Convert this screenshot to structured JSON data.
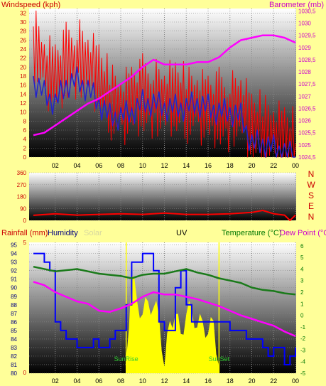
{
  "colors": {
    "background": "#ffff99",
    "wind": "#ff0000",
    "gust": "#ff0000",
    "avg_wind": "#2222cc",
    "barometer": "#ff00ff",
    "direction": "#ff0000",
    "humidity": "#0000ff",
    "temperature": "#1a7a1a",
    "dewpoint": "#ff00ff",
    "solar": "#ffff00",
    "axis_red": "#cc0000",
    "axis_magenta": "#cc00cc",
    "axis_green": "#007700"
  },
  "chart_data": [
    {
      "type": "line",
      "title": "",
      "left_label": "Windspeed (kph)",
      "right_label": "Barometer (mb)",
      "x_ticks": [
        "02",
        "04",
        "06",
        "08",
        "10",
        "12",
        "14",
        "16",
        "18",
        "20",
        "22",
        "00"
      ],
      "y_left_ticks": [
        "0",
        "2",
        "4",
        "6",
        "8",
        "10",
        "12",
        "14",
        "16",
        "18",
        "20",
        "22",
        "24",
        "26",
        "28",
        "30",
        "32"
      ],
      "y_left_range": [
        0,
        33
      ],
      "y_right_ticks": [
        "1024,5",
        "1025",
        "1025,5",
        "1026",
        "1026,5",
        "1027",
        "1027,5",
        "1028",
        "1028,5",
        "1029",
        "1029,5",
        "1030",
        "1030,5"
      ],
      "y_right_range": [
        1024.5,
        1030.6
      ],
      "series": [
        {
          "key": "gust",
          "x": [
            0,
            1,
            2,
            3,
            4,
            5,
            6,
            7,
            8,
            9,
            10,
            11,
            12,
            13,
            14,
            15,
            16,
            17,
            18,
            19,
            20,
            21,
            22,
            23,
            24
          ],
          "values": [
            26,
            20,
            18,
            21,
            22,
            20,
            17,
            13,
            11,
            13,
            14,
            13,
            12,
            13,
            12,
            12,
            11,
            11,
            10,
            11,
            6,
            6,
            5,
            4,
            3
          ]
        },
        {
          "key": "avg_wind",
          "x": [
            0,
            1,
            2,
            3,
            4,
            5,
            6,
            7,
            8,
            9,
            10,
            11,
            12,
            13,
            14,
            15,
            16,
            17,
            18,
            19,
            20,
            21,
            22,
            23,
            24
          ],
          "values": [
            17,
            14,
            12,
            16,
            17,
            15,
            12,
            9,
            9,
            10,
            12,
            12,
            11,
            11,
            11,
            12,
            11,
            10,
            10,
            9,
            3,
            3,
            2,
            1,
            0
          ]
        },
        {
          "key": "barometer",
          "x": [
            0,
            1,
            2,
            3,
            4,
            5,
            6,
            7,
            8,
            9,
            10,
            11,
            12,
            13,
            14,
            15,
            16,
            17,
            18,
            19,
            20,
            21,
            22,
            23,
            24
          ],
          "values": [
            1025.4,
            1025.5,
            1025.8,
            1026.1,
            1026.4,
            1026.7,
            1026.9,
            1027.2,
            1027.5,
            1027.8,
            1028.2,
            1028.5,
            1028.3,
            1028.3,
            1028.3,
            1028.4,
            1028.4,
            1028.6,
            1029.0,
            1029.3,
            1029.4,
            1029.5,
            1029.5,
            1029.4,
            1029.2
          ]
        }
      ]
    },
    {
      "type": "line",
      "title": "",
      "x_ticks": [
        "02",
        "04",
        "06",
        "08",
        "10",
        "12",
        "14",
        "16",
        "18",
        "20",
        "22",
        "00"
      ],
      "y_ticks": [
        "0",
        "90",
        "180",
        "270",
        "360"
      ],
      "y_range": [
        0,
        360
      ],
      "side_letters": [
        "N",
        "W",
        "S",
        "E",
        "N"
      ],
      "series": [
        {
          "key": "direction",
          "x": [
            0,
            2,
            4,
            6,
            8,
            10,
            12,
            14,
            16,
            18,
            20,
            21,
            22,
            23,
            23.5,
            24
          ],
          "values": [
            38,
            50,
            40,
            45,
            50,
            45,
            55,
            45,
            45,
            50,
            60,
            75,
            50,
            40,
            0,
            40
          ]
        }
      ]
    },
    {
      "type": "line",
      "title": "",
      "left_labels": [
        "Rainfall (mm)",
        "Humidity",
        "Solar"
      ],
      "center_label": "UV",
      "right_labels": [
        "Temperature (°C)",
        "Dew Point (°C)"
      ],
      "x_ticks": [
        "02",
        "04",
        "06",
        "08",
        "10",
        "12",
        "14",
        "16",
        "18",
        "20",
        "22",
        "00"
      ],
      "y_left_ticks": [
        "80",
        "81",
        "82",
        "83",
        "84",
        "85",
        "86",
        "87",
        "88",
        "89",
        "90",
        "91",
        "92",
        "93",
        "94",
        "95"
      ],
      "y_left_range": [
        80,
        95.3
      ],
      "y_right_ticks": [
        "-5",
        "-4",
        "-3",
        "-2",
        "-1",
        "0",
        "1",
        "2",
        "3",
        "4",
        "5",
        "6"
      ],
      "y_right_range": [
        -5,
        6.3
      ],
      "rain_ticks": [
        "0",
        "5"
      ],
      "markers": [
        "SunRise",
        "SunSet"
      ],
      "marker_x": [
        8.5,
        17
      ],
      "series": [
        {
          "key": "humidity",
          "x": [
            0,
            0.5,
            1,
            1.5,
            2,
            2.5,
            3,
            3.5,
            4,
            4.5,
            5,
            5.5,
            6,
            6.5,
            7,
            7.5,
            8,
            8.5,
            9,
            9.5,
            10,
            10.5,
            11,
            11.5,
            12,
            12.5,
            13,
            13.5,
            14,
            14.5,
            15,
            15.5,
            16,
            16.5,
            17,
            17.5,
            18,
            18.5,
            19,
            19.5,
            20,
            20.5,
            21,
            21.5,
            22,
            22.5,
            23,
            23.5,
            24
          ],
          "values": [
            94,
            94,
            93,
            92,
            86,
            85,
            84,
            84,
            83,
            83,
            83,
            84,
            83,
            83,
            84,
            85,
            85,
            88,
            93,
            93,
            94,
            94,
            92,
            86,
            85,
            85,
            90,
            92,
            88,
            86,
            86,
            86,
            86,
            86,
            86,
            86,
            85,
            85,
            85,
            84,
            84,
            84,
            83,
            82,
            83,
            83,
            81,
            82,
            83
          ]
        },
        {
          "key": "temperature",
          "x": [
            0,
            2,
            4,
            6,
            8,
            9,
            10,
            11,
            12,
            13,
            14,
            15,
            16,
            17,
            18,
            19,
            20,
            21,
            22,
            23,
            24
          ],
          "values": [
            4.2,
            3.8,
            4.0,
            3.6,
            3.4,
            3.2,
            3.5,
            3.6,
            3.6,
            3.8,
            4.0,
            3.7,
            3.5,
            3.2,
            3.0,
            2.8,
            2.4,
            2.2,
            2.1,
            1.9,
            1.8
          ]
        },
        {
          "key": "dewpoint",
          "x": [
            0,
            1,
            2,
            3,
            4,
            5,
            6,
            7,
            8,
            9,
            10,
            11,
            12,
            13,
            14,
            15,
            16,
            17,
            18,
            19,
            20,
            21,
            22,
            23,
            24
          ],
          "values": [
            2.9,
            2.6,
            2.0,
            1.6,
            1.2,
            1.0,
            0.4,
            0.3,
            0.6,
            1.0,
            1.6,
            2.0,
            1.8,
            1.8,
            1.6,
            1.4,
            1.1,
            0.8,
            0.4,
            0.0,
            -0.3,
            -0.6,
            -0.9,
            -1.4,
            -1.8
          ]
        },
        {
          "key": "solar",
          "x": [
            8.5,
            9,
            9.5,
            10,
            10.5,
            11,
            11.5,
            12,
            12.5,
            13,
            13.5,
            14,
            14.5,
            15,
            15.5,
            16,
            16.5,
            17
          ],
          "values": [
            0.1,
            0.75,
            0.55,
            0.45,
            0.55,
            0.5,
            0.45,
            0.05,
            0.4,
            0.45,
            0.3,
            0.45,
            0.5,
            0.35,
            0.4,
            0.3,
            0.4,
            0.05
          ]
        }
      ]
    }
  ],
  "header": {
    "text": "",
    "faint_title": ""
  }
}
